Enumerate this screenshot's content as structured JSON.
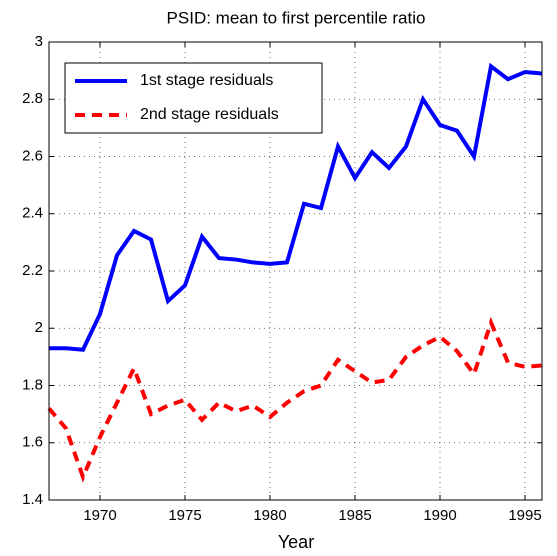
{
  "chart_data": {
    "type": "line",
    "title": "PSID: mean to first percentile ratio",
    "x_label": "Year",
    "x": [
      1967,
      1968,
      1969,
      1970,
      1971,
      1972,
      1973,
      1974,
      1975,
      1976,
      1977,
      1978,
      1979,
      1980,
      1981,
      1982,
      1983,
      1984,
      1985,
      1986,
      1987,
      1988,
      1989,
      1990,
      1991,
      1992,
      1993,
      1994,
      1995,
      1996
    ],
    "series": [
      {
        "name": "1st stage residuals",
        "color": "#0000ff",
        "dash": "solid",
        "values": [
          1.93,
          1.93,
          1.925,
          2.05,
          2.255,
          2.34,
          2.31,
          2.095,
          2.15,
          2.32,
          2.245,
          2.24,
          2.23,
          2.225,
          2.23,
          2.435,
          2.42,
          2.635,
          2.525,
          2.615,
          2.56,
          2.635,
          2.8,
          2.71,
          2.69,
          2.6,
          2.915,
          2.87,
          2.895,
          2.89
        ]
      },
      {
        "name": "2nd stage residuals",
        "color": "#ff0000",
        "dash": "dashed",
        "values": [
          1.72,
          1.65,
          1.48,
          1.62,
          1.74,
          1.86,
          1.7,
          1.73,
          1.75,
          1.68,
          1.74,
          1.71,
          1.73,
          1.69,
          1.74,
          1.78,
          1.8,
          1.89,
          1.85,
          1.81,
          1.82,
          1.9,
          1.94,
          1.97,
          1.92,
          1.84,
          2.02,
          1.88,
          1.865,
          1.87
        ]
      }
    ],
    "xlim": [
      1967,
      1996
    ],
    "xticks": [
      1970,
      1975,
      1980,
      1985,
      1990,
      1995
    ],
    "ylim": [
      1.4,
      3
    ],
    "yticks": [
      1.4,
      1.6,
      1.8,
      2,
      2.2,
      2.4,
      2.6,
      2.8,
      3
    ],
    "grid": true,
    "legend": "upper-left"
  }
}
